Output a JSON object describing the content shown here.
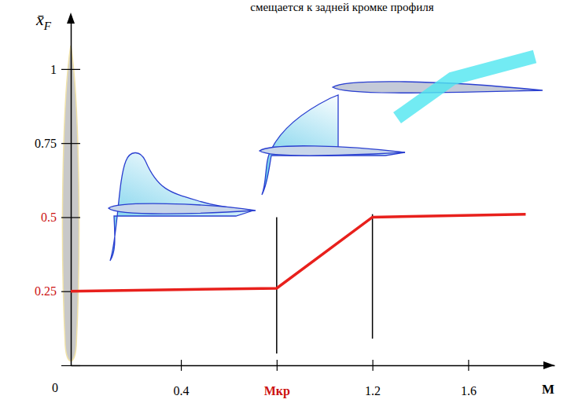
{
  "chart_data": {
    "type": "line",
    "title": "смещается  к задней кромке профиля",
    "x_label": "M",
    "y_label": "x̄F",
    "x": [
      -0.06,
      0.8,
      1.2,
      1.84
    ],
    "values": [
      0.25,
      0.26,
      0.5,
      0.51
    ],
    "color": "#e8201c",
    "xlim": [
      -0.06,
      1.96
    ],
    "ylim": [
      0,
      1.18
    ],
    "xticks": [
      0.4,
      {
        "value": 0.8,
        "label": "Mкр"
      },
      1.2,
      1.6
    ],
    "yticks": [
      0,
      0.25,
      0.5,
      0.75,
      1
    ],
    "reference_lines": [
      {
        "x": 0.8,
        "y": [
          0.04,
          0.5
        ]
      },
      {
        "x": 1.2,
        "y": [
          0.09,
          0.51
        ]
      }
    ]
  }
}
